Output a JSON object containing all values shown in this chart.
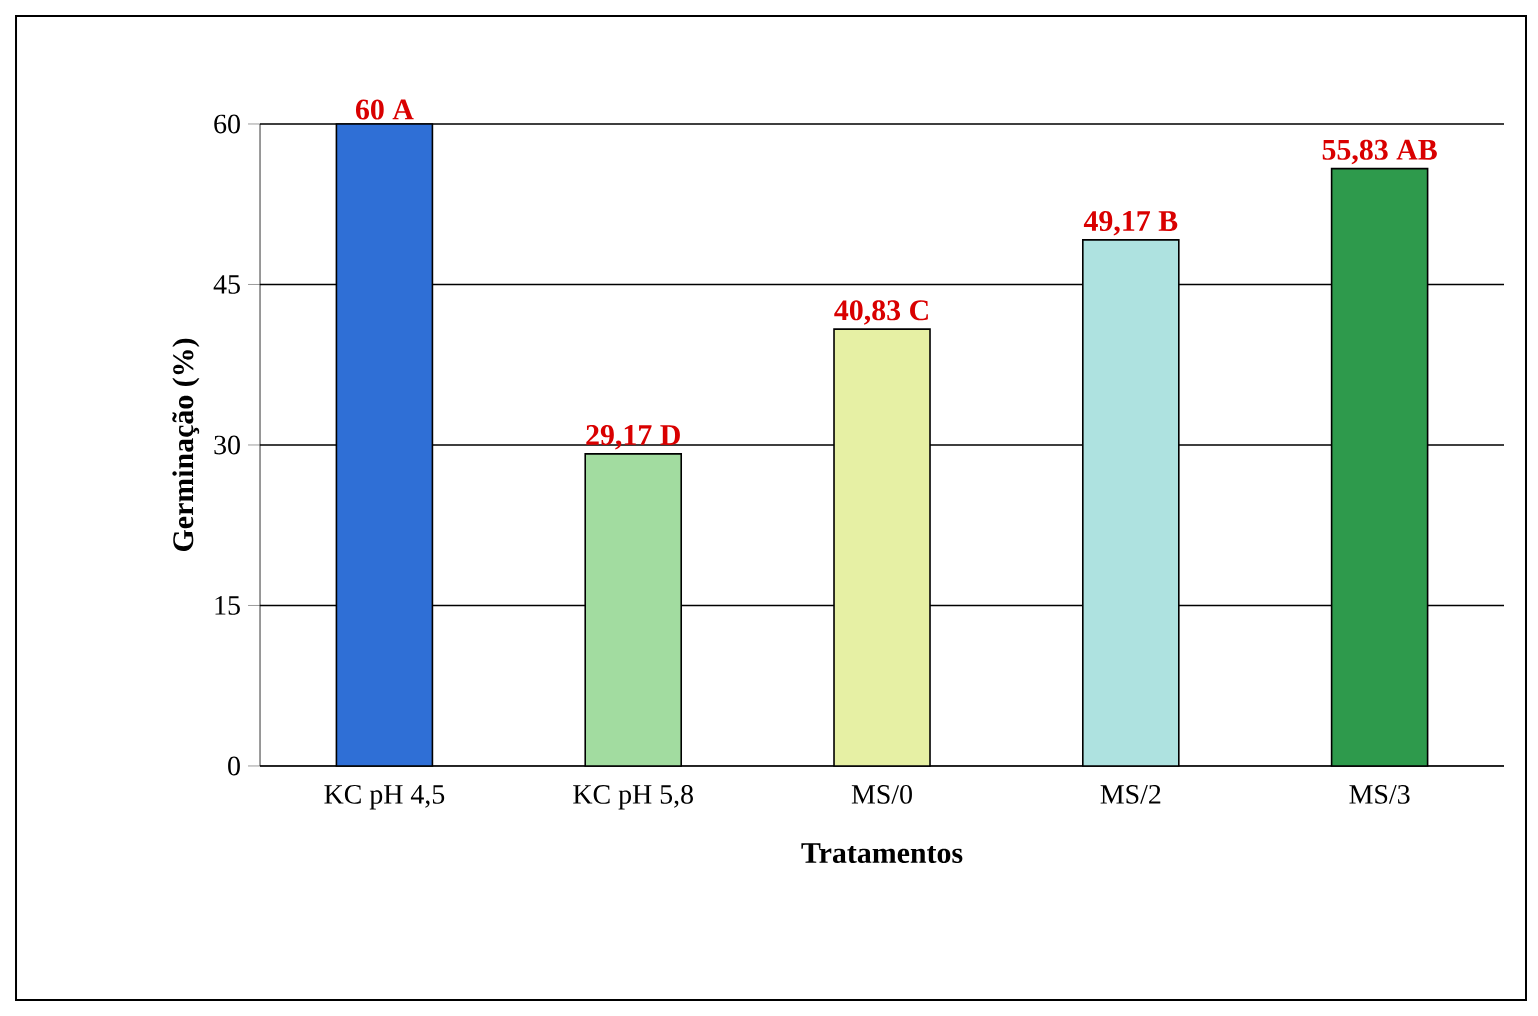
{
  "chart_data": {
    "type": "bar",
    "xlabel": "Tratamentos",
    "ylabel": "Germinação (%)",
    "categories": [
      "KC pH 4,5",
      "KC pH 5,8",
      "MS/0",
      "MS/2",
      "MS/3"
    ],
    "values": [
      60,
      29.17,
      40.83,
      49.17,
      55.83
    ],
    "value_labels": [
      "60 A",
      "29,17 D",
      "40,83 C",
      "49,17 B",
      "55,83 AB"
    ],
    "colors": [
      "#2f6fd6",
      "#a2dca0",
      "#e6f0a4",
      "#aee2e0",
      "#2e9a4c"
    ],
    "ylim": [
      0,
      60
    ],
    "yticks": [
      0,
      15,
      30,
      45,
      60
    ],
    "grid": "y"
  }
}
